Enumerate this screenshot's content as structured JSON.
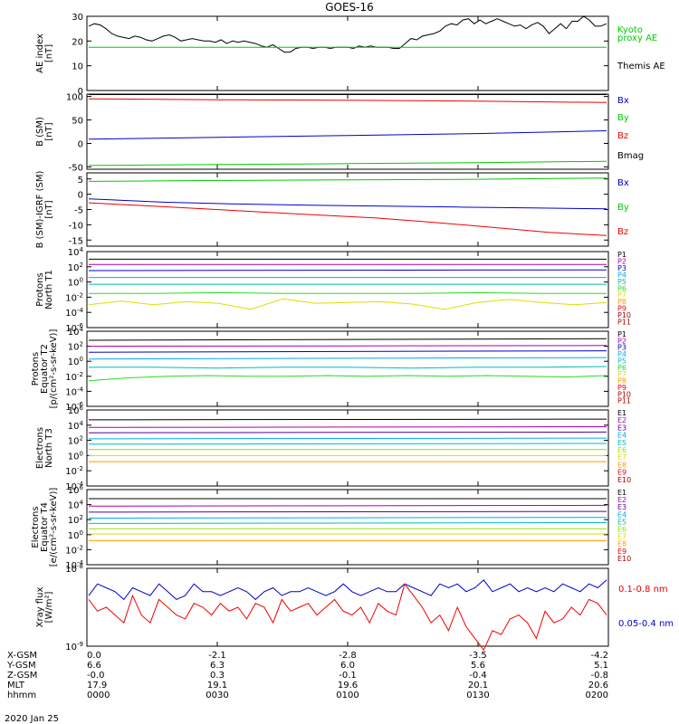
{
  "title": "GOES-16",
  "date": "2020 Jan 25",
  "colors": {
    "black": "#000000",
    "red": "#ee0000",
    "green": "#00cc00",
    "blue": "#0000cc",
    "teal": "#00bbbb",
    "lightgreen": "#22dd22",
    "yellow": "#dddd00",
    "orange": "#ff9900",
    "darkred": "#aa0000",
    "magenta": "#aa00aa",
    "purple": "#550099",
    "cyan": "#00aaee",
    "yellowgreen": "#99dd00",
    "lime": "#66ee00"
  },
  "chart_data": [
    {
      "type": "line",
      "id": "ae",
      "ylabel": [
        "AE index",
        "[nT]"
      ],
      "ylim": [
        0,
        30
      ],
      "yticks": [
        0,
        10,
        20,
        30
      ],
      "yscale": "linear",
      "legend": [
        {
          "text": "Kyoto",
          "color": "#00cc00"
        },
        {
          "text": "proxy AE",
          "color": "#00cc00"
        },
        {
          "text": "Themis AE",
          "color": "#000000"
        }
      ],
      "series": [
        {
          "name": "Themis AE",
          "color": "#000000",
          "values": [
            26,
            27,
            26.5,
            25,
            23,
            22,
            21.5,
            21,
            22,
            21.5,
            20.5,
            20,
            21,
            22,
            22.5,
            21.5,
            20,
            20.5,
            21,
            20.5,
            20,
            20,
            19.5,
            20.5,
            19,
            20,
            19.5,
            20,
            19.5,
            19,
            18,
            17.5,
            18.5,
            17,
            15.5,
            15.5,
            17,
            17.5,
            17.5,
            17,
            17.5,
            17.5,
            17,
            17.5,
            17.5,
            17.5,
            17,
            18,
            17.5,
            18,
            17.5,
            17.5,
            17.5,
            17,
            17,
            19,
            21,
            20.5,
            22,
            22.5,
            23,
            24,
            26,
            27,
            26.5,
            28.5,
            29,
            27,
            28.5,
            27,
            28,
            29,
            28,
            27,
            26,
            26.5,
            25,
            26.5,
            27.5,
            26,
            23,
            25,
            27,
            25,
            28,
            28,
            30,
            28.5,
            26,
            26,
            27
          ]
        },
        {
          "name": "Kyoto proxy AE",
          "color": "#00cc00",
          "values": [
            17.5,
            17.5
          ]
        }
      ]
    },
    {
      "type": "line",
      "id": "bsm",
      "ylabel": [
        "B (SM)",
        "[nT]"
      ],
      "ylim": [
        -55,
        105
      ],
      "yticks": [
        -50,
        0,
        50,
        100
      ],
      "yscale": "linear",
      "legend": [
        {
          "text": "Bx",
          "color": "#0000cc"
        },
        {
          "text": "By",
          "color": "#00cc00"
        },
        {
          "text": "Bz",
          "color": "#ee0000"
        },
        {
          "text": "Bmag",
          "color": "#000000"
        }
      ],
      "series": [
        {
          "name": "Bmag",
          "color": "#000000",
          "values": [
            104,
            104,
            104,
            104,
            104
          ]
        },
        {
          "name": "Bz",
          "color": "#ee0000",
          "values": [
            95,
            93,
            92,
            90,
            87
          ]
        },
        {
          "name": "Bx",
          "color": "#0000cc",
          "values": [
            9,
            13,
            17,
            21,
            27
          ]
        },
        {
          "name": "By",
          "color": "#00cc00",
          "values": [
            -47,
            -45,
            -43,
            -41,
            -38
          ]
        }
      ]
    },
    {
      "type": "line",
      "id": "bdiff",
      "ylabel": [
        "B (SM)-IGRF (SM)",
        "[nT]"
      ],
      "ylim": [
        -17,
        7
      ],
      "yticks": [
        -15,
        -10,
        -5,
        0,
        5
      ],
      "yscale": "linear",
      "legend": [
        {
          "text": "Bx",
          "color": "#0000cc"
        },
        {
          "text": "By",
          "color": "#00cc00"
        },
        {
          "text": "Bz",
          "color": "#ee0000"
        }
      ],
      "series": [
        {
          "name": "By",
          "color": "#00cc00",
          "values": [
            4.2,
            4.5,
            4.7,
            4.9,
            5.3
          ]
        },
        {
          "name": "Bx",
          "color": "#0000cc",
          "values": [
            -1.5,
            -2.6,
            -3.2,
            -3.6,
            -3.9,
            -4.2,
            -4.5,
            -4.8
          ]
        },
        {
          "name": "Bz",
          "color": "#ee0000",
          "values": [
            -2.8,
            -3.8,
            -4.8,
            -5.8,
            -6.8,
            -7.8,
            -9.2,
            -10.8,
            -12.5,
            -13.5
          ]
        }
      ]
    },
    {
      "type": "line",
      "id": "pnt1",
      "ylabel": [
        "Protons",
        "North T1"
      ],
      "ylim": [
        -6,
        4
      ],
      "yscale": "log",
      "yticks": [
        -6,
        -4,
        -2,
        0,
        2,
        4
      ],
      "legend": [
        {
          "text": "P1",
          "color": "#000000"
        },
        {
          "text": "P2",
          "color": "#aa00aa"
        },
        {
          "text": "P3",
          "color": "#0000cc"
        },
        {
          "text": "P4",
          "color": "#00aaee"
        },
        {
          "text": "P5",
          "color": "#00bbbb"
        },
        {
          "text": "P6",
          "color": "#22dd22"
        },
        {
          "text": "P7",
          "color": "#dddd00"
        },
        {
          "text": "P8",
          "color": "#ff9900"
        },
        {
          "text": "P9",
          "color": "#ee0000"
        },
        {
          "text": "P10",
          "color": "#aa0000"
        },
        {
          "text": "P11",
          "color": "#aa0000"
        }
      ],
      "series": [
        {
          "name": "P1",
          "color": "#000000",
          "values": [
            3.0,
            3.0
          ]
        },
        {
          "name": "P2",
          "color": "#aa00aa",
          "values": [
            2.3,
            2.3
          ]
        },
        {
          "name": "P3",
          "color": "#0000cc",
          "values": [
            1.5,
            1.6
          ]
        },
        {
          "name": "P4",
          "color": "#00aaee",
          "values": [
            0.6,
            0.6
          ]
        },
        {
          "name": "P5",
          "color": "#00bbbb",
          "values": [
            -0.3,
            -0.3
          ]
        },
        {
          "name": "P6",
          "color": "#22dd22",
          "values": [
            -1.5,
            -1.5,
            -1.4,
            -1.5,
            -1.5,
            -1.5,
            -1.4,
            -1.5,
            -1.5
          ]
        },
        {
          "name": "P7",
          "color": "#dddd00",
          "values": [
            -3,
            -2.5,
            -3,
            -2.6,
            -2.8,
            -3.6,
            -2.2,
            -2.8,
            -2.7,
            -2.6,
            -2.9,
            -3.6,
            -2.7,
            -2.3,
            -2.7,
            -3,
            -2.7
          ]
        },
        {
          "name": "P10",
          "color": "#aa0000",
          "values": []
        }
      ]
    },
    {
      "type": "line",
      "id": "pet2",
      "ylabel": [
        "Protons",
        "Equator T2",
        "[p/(cm²-s-sr-keV)]"
      ],
      "ylim": [
        -6,
        4
      ],
      "yscale": "log",
      "yticks": [
        -6,
        -4,
        -2,
        0,
        2,
        4
      ],
      "legend": [
        {
          "text": "P1",
          "color": "#000000"
        },
        {
          "text": "P2",
          "color": "#aa00aa"
        },
        {
          "text": "P3",
          "color": "#0000cc"
        },
        {
          "text": "P4",
          "color": "#00aaee"
        },
        {
          "text": "P5",
          "color": "#00bbbb"
        },
        {
          "text": "P6",
          "color": "#22dd22"
        },
        {
          "text": "P7",
          "color": "#dddd00"
        },
        {
          "text": "P8",
          "color": "#ff9900"
        },
        {
          "text": "P9",
          "color": "#ee0000"
        },
        {
          "text": "P10",
          "color": "#aa0000"
        },
        {
          "text": "P11",
          "color": "#aa0000"
        }
      ],
      "series": [
        {
          "name": "P1",
          "color": "#000000",
          "values": [
            2.8,
            3.0
          ]
        },
        {
          "name": "P2",
          "color": "#aa00aa",
          "values": [
            2.0,
            2.1
          ]
        },
        {
          "name": "P3",
          "color": "#0000cc",
          "values": [
            1.2,
            1.4
          ]
        },
        {
          "name": "P4",
          "color": "#00aaee",
          "values": [
            0.3,
            0.5
          ]
        },
        {
          "name": "P5",
          "color": "#00bbbb",
          "values": [
            -0.8,
            -0.8,
            -0.9,
            -0.8,
            -0.8,
            -0.9,
            -0.8,
            -0.8,
            -0.7
          ]
        },
        {
          "name": "P6",
          "color": "#22dd22",
          "values": [
            -2.6,
            -2.2,
            -2.0,
            -1.9,
            -2.0,
            -2.0,
            -1.9,
            -2.0,
            -1.9,
            -2.0,
            -1.9,
            -2.0,
            -2.1,
            -1.9
          ]
        }
      ]
    },
    {
      "type": "line",
      "id": "ent3",
      "ylabel": [
        "Electrons",
        "North T3"
      ],
      "ylim": [
        -4,
        6
      ],
      "yscale": "log",
      "yticks": [
        -4,
        -2,
        0,
        2,
        4,
        6
      ],
      "legend": [
        {
          "text": "E1",
          "color": "#000000"
        },
        {
          "text": "E2",
          "color": "#aa00aa"
        },
        {
          "text": "E3",
          "color": "#550099"
        },
        {
          "text": "E4",
          "color": "#00aaee"
        },
        {
          "text": "E5",
          "color": "#00bbbb"
        },
        {
          "text": "E6",
          "color": "#99dd00"
        },
        {
          "text": "E7",
          "color": "#dddd00"
        },
        {
          "text": "E8",
          "color": "#ff9900"
        },
        {
          "text": "E9",
          "color": "#ee0000"
        },
        {
          "text": "E10",
          "color": "#aa0000"
        }
      ],
      "series": [
        {
          "name": "E1",
          "color": "#000000",
          "values": [
            4.7,
            4.8
          ]
        },
        {
          "name": "E2",
          "color": "#aa00aa",
          "values": [
            3.7,
            3.8
          ]
        },
        {
          "name": "E3",
          "color": "#550099",
          "values": [
            3.0,
            3.1
          ]
        },
        {
          "name": "E4",
          "color": "#00aaee",
          "values": [
            2.2,
            2.3
          ]
        },
        {
          "name": "E5",
          "color": "#00bbbb",
          "values": [
            1.5,
            1.6
          ]
        },
        {
          "name": "E6",
          "color": "#99dd00",
          "values": [
            0.8,
            0.8
          ]
        },
        {
          "name": "E7",
          "color": "#dddd00",
          "values": [
            0.0,
            0.0
          ]
        },
        {
          "name": "E8",
          "color": "#ff9900",
          "values": [
            -0.8,
            -0.8
          ]
        }
      ]
    },
    {
      "type": "line",
      "id": "eet4",
      "ylabel": [
        "Electrons",
        "Equator T4",
        "[e/(cm²-s-sr-keV)]"
      ],
      "ylim": [
        -4,
        6
      ],
      "yscale": "log",
      "yticks": [
        -4,
        -2,
        0,
        2,
        4,
        6
      ],
      "legend": [
        {
          "text": "E1",
          "color": "#000000"
        },
        {
          "text": "E2",
          "color": "#aa00aa"
        },
        {
          "text": "E3",
          "color": "#550099"
        },
        {
          "text": "E4",
          "color": "#00aaee"
        },
        {
          "text": "E5",
          "color": "#00bbbb"
        },
        {
          "text": "E6",
          "color": "#99dd00"
        },
        {
          "text": "E7",
          "color": "#dddd00"
        },
        {
          "text": "E8",
          "color": "#ff9900"
        },
        {
          "text": "E9",
          "color": "#ee0000"
        },
        {
          "text": "E10",
          "color": "#aa0000"
        }
      ],
      "series": [
        {
          "name": "E1",
          "color": "#000000",
          "values": [
            4.8,
            4.8
          ]
        },
        {
          "name": "E2",
          "color": "#aa00aa",
          "values": [
            3.8,
            3.9
          ]
        },
        {
          "name": "E3",
          "color": "#550099",
          "values": [
            3.0,
            3.1
          ]
        },
        {
          "name": "E4",
          "color": "#00aaee",
          "values": [
            2.2,
            2.3
          ]
        },
        {
          "name": "E5",
          "color": "#00bbbb",
          "values": [
            1.5,
            1.6
          ]
        },
        {
          "name": "E6",
          "color": "#99dd00",
          "values": [
            0.8,
            0.8
          ]
        },
        {
          "name": "E7",
          "color": "#dddd00",
          "values": [
            0.1,
            0.1
          ]
        },
        {
          "name": "E8",
          "color": "#ff9900",
          "values": [
            -0.8,
            -0.8
          ]
        }
      ]
    },
    {
      "type": "line",
      "id": "xray",
      "ylabel": [
        "Xray flux",
        "[W/m²]"
      ],
      "ylim": [
        -9,
        -8
      ],
      "yscale": "log",
      "yticks": [
        -9,
        -8
      ],
      "legend": [
        {
          "text": "0.1-0.8 nm",
          "color": "#ee0000"
        },
        {
          "text": "0.05-0.4 nm",
          "color": "#0000cc"
        }
      ],
      "series": [
        {
          "name": "0.05-0.4 nm",
          "color": "#0000cc",
          "values": [
            -8.35,
            -8.2,
            -8.25,
            -8.3,
            -8.4,
            -8.25,
            -8.3,
            -8.35,
            -8.2,
            -8.3,
            -8.4,
            -8.35,
            -8.2,
            -8.3,
            -8.3,
            -8.35,
            -8.3,
            -8.25,
            -8.3,
            -8.4,
            -8.3,
            -8.25,
            -8.35,
            -8.3,
            -8.3,
            -8.25,
            -8.3,
            -8.35,
            -8.3,
            -8.2,
            -8.3,
            -8.35,
            -8.3,
            -8.25,
            -8.3,
            -8.3,
            -8.2,
            -8.25,
            -8.3,
            -8.35,
            -8.2,
            -8.25,
            -8.2,
            -8.3,
            -8.25,
            -8.15,
            -8.3,
            -8.25,
            -8.2,
            -8.3,
            -8.25,
            -8.3,
            -8.25,
            -8.3,
            -8.2,
            -8.25,
            -8.3,
            -8.2,
            -8.25,
            -8.15
          ]
        },
        {
          "name": "0.1-0.8 nm",
          "color": "#ee0000",
          "values": [
            -8.4,
            -8.55,
            -8.5,
            -8.6,
            -8.7,
            -8.35,
            -8.6,
            -8.7,
            -8.4,
            -8.5,
            -8.6,
            -8.65,
            -8.45,
            -8.5,
            -8.6,
            -8.45,
            -8.55,
            -8.5,
            -8.65,
            -8.45,
            -8.5,
            -8.7,
            -8.4,
            -8.55,
            -8.5,
            -8.45,
            -8.6,
            -8.5,
            -8.4,
            -8.55,
            -8.6,
            -8.5,
            -8.7,
            -8.45,
            -8.55,
            -8.6,
            -8.2,
            -8.35,
            -8.5,
            -8.7,
            -8.6,
            -8.8,
            -8.5,
            -8.75,
            -8.9,
            -9.05,
            -8.8,
            -8.85,
            -8.65,
            -8.6,
            -8.7,
            -8.9,
            -8.55,
            -8.7,
            -8.65,
            -8.5,
            -8.6,
            -8.4,
            -8.45,
            -8.6
          ]
        }
      ]
    }
  ],
  "footer": {
    "rows": [
      {
        "label": "X-GSM",
        "values": [
          "0.0",
          "-2.1",
          "-2.8",
          "-3.5",
          "-4.2"
        ]
      },
      {
        "label": "Y-GSM",
        "values": [
          "6.6",
          "6.3",
          "6.0",
          "5.6",
          "5.1"
        ]
      },
      {
        "label": "Z-GSM",
        "values": [
          "-0.0",
          "0.3",
          "-0.1",
          "-0.4",
          "-0.8"
        ]
      },
      {
        "label": "MLT",
        "values": [
          "17.9",
          "19.1",
          "19.6",
          "20.1",
          "20.6"
        ]
      },
      {
        "label": "hhmm",
        "values": [
          "0000",
          "0030",
          "0100",
          "0130",
          "0200"
        ]
      }
    ]
  }
}
